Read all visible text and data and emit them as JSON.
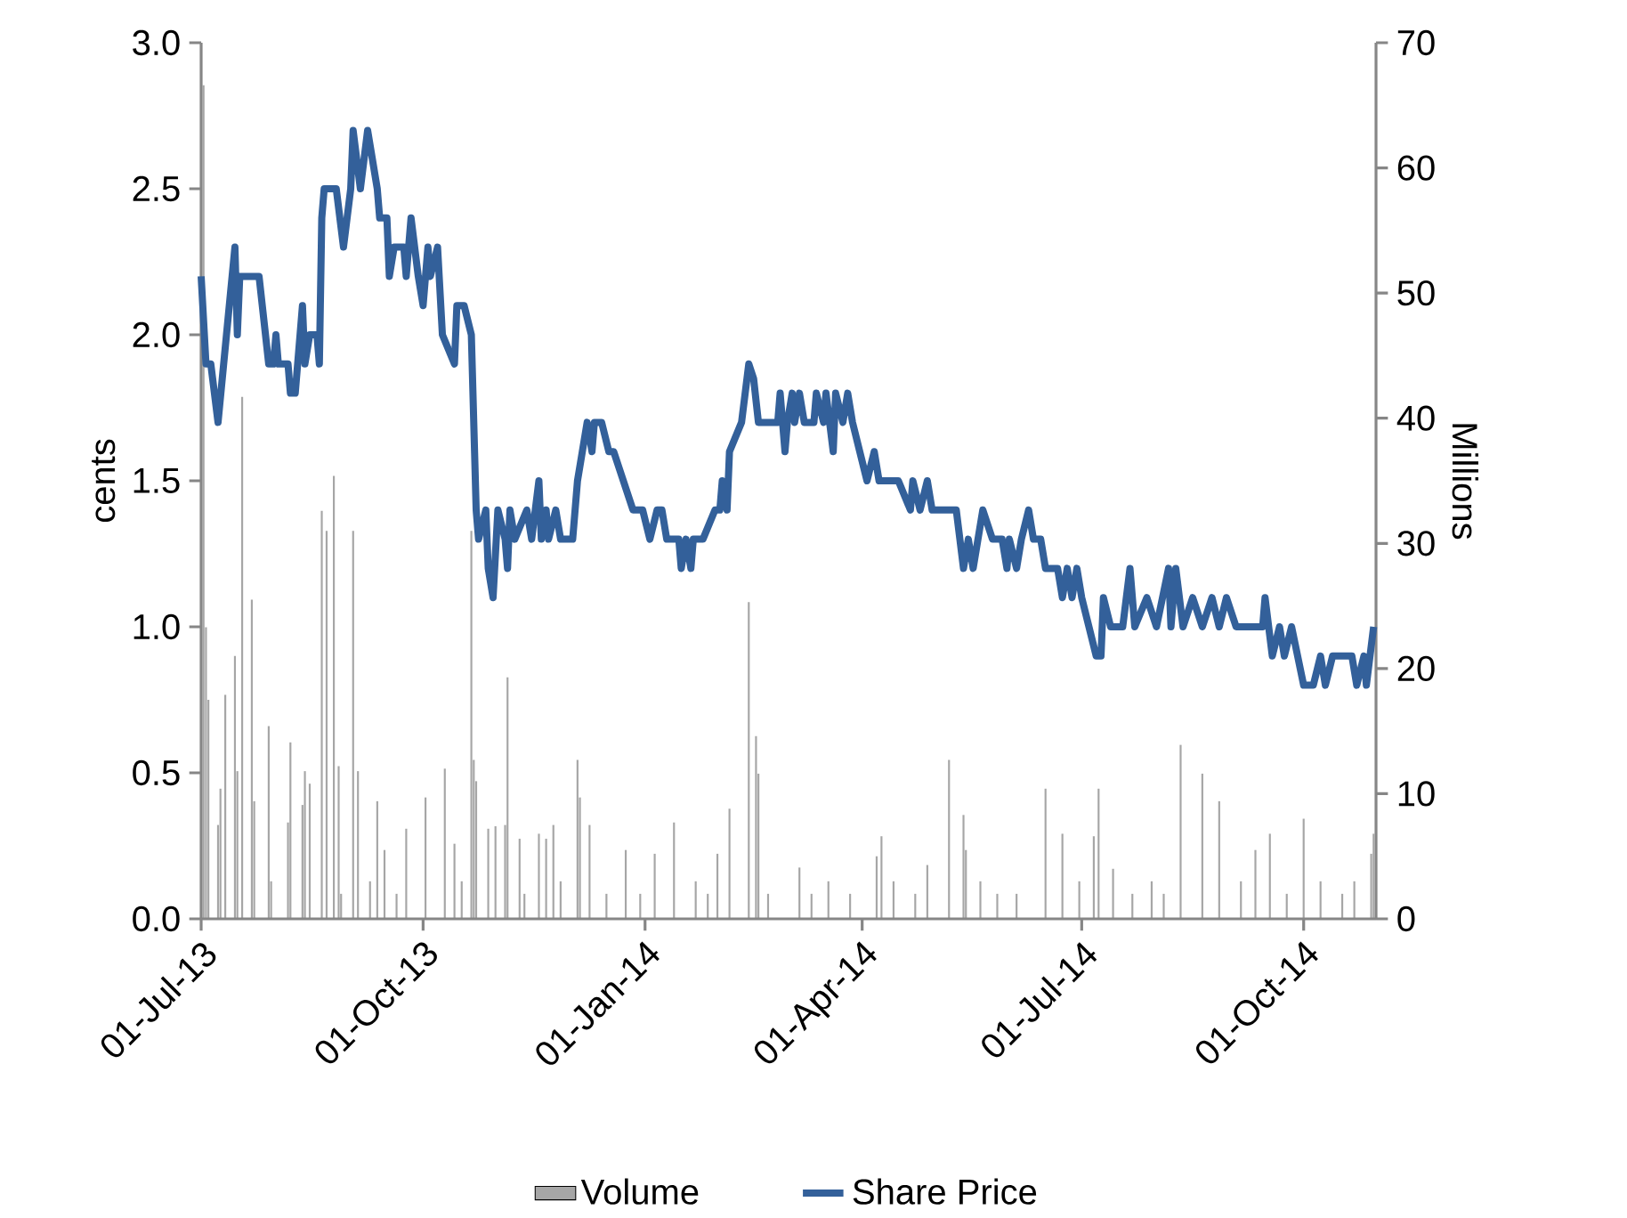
{
  "chart_data": {
    "type": "line",
    "ylabel": "cents",
    "y2label": "Millions",
    "legend": "bottom",
    "xlim": [
      "2013-07-01",
      "2014-10-31"
    ],
    "xticks": [
      {
        "value": "2013-07-01",
        "label": "01-Jul-13"
      },
      {
        "value": "2013-10-01",
        "label": "01-Oct-13"
      },
      {
        "value": "2014-01-01",
        "label": "01-Jan-14"
      },
      {
        "value": "2014-04-01",
        "label": "01-Apr-14"
      },
      {
        "value": "2014-07-01",
        "label": "01-Jul-14"
      },
      {
        "value": "2014-10-01",
        "label": "01-Oct-14"
      }
    ],
    "ylim": [
      0,
      3
    ],
    "yticks": [
      {
        "value": 0,
        "label": "0.0"
      },
      {
        "value": 0.5,
        "label": "0.5"
      },
      {
        "value": 1,
        "label": "1.0"
      },
      {
        "value": 1.5,
        "label": "1.5"
      },
      {
        "value": 2,
        "label": "2.0"
      },
      {
        "value": 2.5,
        "label": "2.5"
      },
      {
        "value": 3,
        "label": "3.0"
      }
    ],
    "y2lim": [
      0,
      70
    ],
    "y2ticks": [
      0,
      10,
      20,
      30,
      40,
      50,
      60,
      70
    ],
    "series": [
      {
        "name": "Volume",
        "type": "bar",
        "axis": "y2",
        "color": "#a6a6a6",
        "x": [
          "2013-07-02",
          "2013-07-03",
          "2013-07-04",
          "2013-07-08",
          "2013-07-09",
          "2013-07-11",
          "2013-07-15",
          "2013-07-16",
          "2013-07-18",
          "2013-07-22",
          "2013-07-23",
          "2013-07-29",
          "2013-07-30",
          "2013-08-06",
          "2013-08-07",
          "2013-08-12",
          "2013-08-13",
          "2013-08-15",
          "2013-08-20",
          "2013-08-22",
          "2013-08-25",
          "2013-08-27",
          "2013-08-28",
          "2013-09-02",
          "2013-09-04",
          "2013-09-09",
          "2013-09-12",
          "2013-09-15",
          "2013-09-20",
          "2013-09-24",
          "2013-10-02",
          "2013-10-10",
          "2013-10-14",
          "2013-10-17",
          "2013-10-21",
          "2013-10-22",
          "2013-10-23",
          "2013-10-28",
          "2013-10-31",
          "2013-11-04",
          "2013-11-05",
          "2013-11-10",
          "2013-11-12",
          "2013-11-18",
          "2013-11-21",
          "2013-11-24",
          "2013-11-27",
          "2013-12-04",
          "2013-12-05",
          "2013-12-09",
          "2013-12-16",
          "2013-12-24",
          "2013-12-30",
          "2014-01-05",
          "2014-01-13",
          "2014-01-22",
          "2014-01-27",
          "2014-01-31",
          "2014-02-05",
          "2014-02-13",
          "2014-02-16",
          "2014-02-17",
          "2014-02-21",
          "2014-03-06",
          "2014-03-11",
          "2014-03-18",
          "2014-03-27",
          "2014-04-07",
          "2014-04-09",
          "2014-04-14",
          "2014-04-23",
          "2014-04-28",
          "2014-05-07",
          "2014-05-13",
          "2014-05-14",
          "2014-05-20",
          "2014-05-27",
          "2014-06-04",
          "2014-06-16",
          "2014-06-23",
          "2014-06-30",
          "2014-07-06",
          "2014-07-08",
          "2014-07-14",
          "2014-07-22",
          "2014-07-30",
          "2014-08-04",
          "2014-08-11",
          "2014-08-20",
          "2014-08-27",
          "2014-09-05",
          "2014-09-11",
          "2014-09-17",
          "2014-09-24",
          "2014-10-01",
          "2014-10-08",
          "2014-10-17",
          "2014-10-22",
          "2014-10-29",
          "2014-10-30"
        ],
        "values": [
          66.6,
          23.3,
          17.5,
          7.5,
          10.4,
          17.9,
          21.0,
          11.8,
          41.7,
          25.5,
          9.4,
          15.4,
          3,
          7.7,
          14.1,
          9.1,
          11.8,
          10.8,
          32.6,
          31.0,
          35.4,
          12.2,
          2,
          31.0,
          11.8,
          3,
          9.4,
          5.5,
          2,
          7.2,
          9.7,
          12.0,
          6.0,
          3,
          31.0,
          12.7,
          11.0,
          7.2,
          7.4,
          7.5,
          19.3,
          6.4,
          2,
          6.8,
          6.4,
          7.5,
          3,
          12.7,
          9.7,
          7.5,
          2,
          5.5,
          2,
          5.2,
          7.7,
          3,
          2,
          5.2,
          8.8,
          25.3,
          14.6,
          11.6,
          2,
          4.1,
          2,
          3,
          2,
          5.0,
          6.6,
          3,
          2,
          4.3,
          12.7,
          8.3,
          5.5,
          3,
          2,
          2,
          10.4,
          6.8,
          3,
          6.6,
          10.4,
          4.0,
          2,
          3,
          2,
          13.9,
          11.6,
          9.4,
          3,
          5.5,
          6.8,
          2,
          8.0,
          3,
          2,
          3,
          5.2,
          6.8
        ]
      },
      {
        "name": "Share Price",
        "color": "#33609a",
        "x": [
          "2013-07-01",
          "2013-07-03",
          "2013-07-05",
          "2013-07-08",
          "2013-07-15",
          "2013-07-16",
          "2013-07-17",
          "2013-07-25",
          "2013-07-29",
          "2013-07-31",
          "2013-08-01",
          "2013-08-02",
          "2013-08-06",
          "2013-08-07",
          "2013-08-09",
          "2013-08-12",
          "2013-08-13",
          "2013-08-15",
          "2013-08-18",
          "2013-08-19",
          "2013-08-20",
          "2013-08-21",
          "2013-08-26",
          "2013-08-29",
          "2013-09-01",
          "2013-09-02",
          "2013-09-05",
          "2013-09-08",
          "2013-09-12",
          "2013-09-13",
          "2013-09-16",
          "2013-09-17",
          "2013-09-19",
          "2013-09-23",
          "2013-09-24",
          "2013-09-26",
          "2013-09-29",
          "2013-10-01",
          "2013-10-03",
          "2013-10-04",
          "2013-10-07",
          "2013-10-09",
          "2013-10-14",
          "2013-10-15",
          "2013-10-18",
          "2013-10-21",
          "2013-10-23",
          "2013-10-24",
          "2013-10-27",
          "2013-10-28",
          "2013-10-30",
          "2013-11-01",
          "2013-11-04",
          "2013-11-05",
          "2013-11-06",
          "2013-11-08",
          "2013-11-13",
          "2013-11-15",
          "2013-11-18",
          "2013-11-19",
          "2013-11-21",
          "2013-11-22",
          "2013-11-25",
          "2013-11-27",
          "2013-12-02",
          "2013-12-04",
          "2013-12-08",
          "2013-12-10",
          "2013-12-11",
          "2013-12-14",
          "2013-12-17",
          "2013-12-19",
          "2013-12-27",
          "2013-12-31",
          "2014-01-03",
          "2014-01-06",
          "2014-01-08",
          "2014-01-10",
          "2014-01-15",
          "2014-01-16",
          "2014-01-18",
          "2014-01-20",
          "2014-01-21",
          "2014-01-25",
          "2014-01-30",
          "2014-02-01",
          "2014-02-02",
          "2014-02-04",
          "2014-02-05",
          "2014-02-10",
          "2014-02-13",
          "2014-02-15",
          "2014-02-17",
          "2014-02-25",
          "2014-02-26",
          "2014-02-28",
          "2014-03-01",
          "2014-03-03",
          "2014-03-04",
          "2014-03-06",
          "2014-03-08",
          "2014-03-12",
          "2014-03-13",
          "2014-03-16",
          "2014-03-17",
          "2014-03-20",
          "2014-03-21",
          "2014-03-24",
          "2014-03-26",
          "2014-03-28",
          "2014-03-31",
          "2014-04-03",
          "2014-04-06",
          "2014-04-08",
          "2014-04-16",
          "2014-04-21",
          "2014-04-22",
          "2014-04-25",
          "2014-04-28",
          "2014-04-30",
          "2014-05-10",
          "2014-05-13",
          "2014-05-15",
          "2014-05-17",
          "2014-05-21",
          "2014-05-25",
          "2014-05-29",
          "2014-05-31",
          "2014-06-01",
          "2014-06-04",
          "2014-06-06",
          "2014-06-09",
          "2014-06-11",
          "2014-06-14",
          "2014-06-16",
          "2014-06-21",
          "2014-06-23",
          "2014-06-25",
          "2014-06-27",
          "2014-06-29",
          "2014-07-01",
          "2014-07-04",
          "2014-07-07",
          "2014-07-09",
          "2014-07-10",
          "2014-07-13",
          "2014-07-18",
          "2014-07-21",
          "2014-07-23",
          "2014-07-28",
          "2014-08-01",
          "2014-08-06",
          "2014-08-07",
          "2014-08-09",
          "2014-08-12",
          "2014-08-16",
          "2014-08-20",
          "2014-08-24",
          "2014-08-27",
          "2014-08-30",
          "2014-09-03",
          "2014-09-14",
          "2014-09-15",
          "2014-09-18",
          "2014-09-21",
          "2014-09-23",
          "2014-09-26",
          "2014-10-01",
          "2014-10-05",
          "2014-10-08",
          "2014-10-10",
          "2014-10-13",
          "2014-10-21",
          "2014-10-23",
          "2014-10-26",
          "2014-10-27",
          "2014-10-30"
        ],
        "values": [
          2.2,
          1.9,
          1.9,
          1.7,
          2.3,
          2.0,
          2.2,
          2.2,
          1.9,
          1.9,
          2.0,
          1.9,
          1.9,
          1.8,
          1.8,
          2.1,
          1.9,
          2.0,
          2.0,
          1.9,
          2.4,
          2.5,
          2.5,
          2.3,
          2.5,
          2.7,
          2.5,
          2.7,
          2.5,
          2.4,
          2.4,
          2.2,
          2.3,
          2.3,
          2.2,
          2.4,
          2.2,
          2.1,
          2.3,
          2.2,
          2.3,
          2.0,
          1.9,
          2.1,
          2.1,
          2.0,
          1.4,
          1.3,
          1.4,
          1.2,
          1.1,
          1.4,
          1.3,
          1.2,
          1.4,
          1.3,
          1.4,
          1.3,
          1.5,
          1.3,
          1.4,
          1.3,
          1.4,
          1.3,
          1.3,
          1.5,
          1.7,
          1.6,
          1.7,
          1.7,
          1.6,
          1.6,
          1.4,
          1.4,
          1.3,
          1.4,
          1.4,
          1.3,
          1.3,
          1.2,
          1.3,
          1.2,
          1.3,
          1.3,
          1.4,
          1.4,
          1.5,
          1.4,
          1.6,
          1.7,
          1.9,
          1.85,
          1.7,
          1.7,
          1.8,
          1.6,
          1.7,
          1.8,
          1.7,
          1.8,
          1.7,
          1.7,
          1.8,
          1.7,
          1.8,
          1.6,
          1.8,
          1.7,
          1.8,
          1.7,
          1.6,
          1.5,
          1.6,
          1.5,
          1.5,
          1.4,
          1.5,
          1.4,
          1.5,
          1.4,
          1.4,
          1.2,
          1.3,
          1.2,
          1.4,
          1.3,
          1.3,
          1.2,
          1.3,
          1.2,
          1.3,
          1.4,
          1.3,
          1.3,
          1.2,
          1.2,
          1.1,
          1.2,
          1.1,
          1.2,
          1.1,
          1.0,
          0.9,
          0.9,
          1.1,
          1.0,
          1.0,
          1.2,
          1.0,
          1.1,
          1.0,
          1.2,
          1.0,
          1.2,
          1.0,
          1.1,
          1.0,
          1.1,
          1.0,
          1.1,
          1.0,
          1.0,
          1.1,
          0.9,
          1.0,
          0.9,
          1.0,
          0.8,
          0.8,
          0.9,
          0.8,
          0.9,
          0.9,
          0.8,
          0.9,
          0.8,
          1.0
        ]
      }
    ]
  }
}
